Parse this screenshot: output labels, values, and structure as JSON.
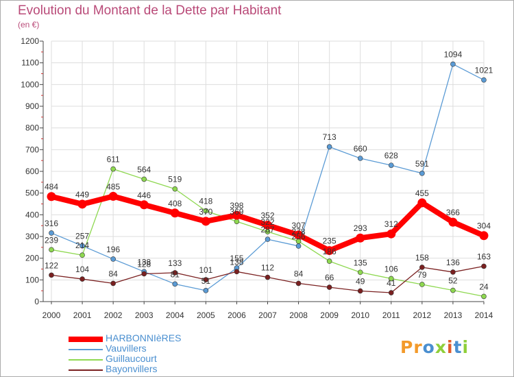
{
  "title": "Evolution du Montant de la Dette par Habitant",
  "subtitle": "(en €)",
  "logo": [
    "Pr",
    "o",
    "x",
    "i",
    "t",
    "i"
  ],
  "chart_data": {
    "type": "line",
    "x": [
      "2000",
      "2001",
      "2002",
      "2003",
      "2004",
      "2005",
      "2006",
      "2007",
      "2008",
      "2009",
      "2010",
      "2011",
      "2012",
      "2013",
      "2014"
    ],
    "ylim": [
      0,
      1200
    ],
    "yticks": [
      0,
      100,
      200,
      300,
      400,
      500,
      600,
      700,
      800,
      900,
      1000,
      1100,
      1200
    ],
    "grid": true,
    "legend_position": "bottom-left",
    "series": [
      {
        "name": "HARBONNIèRES",
        "color": "#ff0000",
        "values": [
          484,
          449,
          485,
          446,
          408,
          370,
          398,
          352,
          307,
          235,
          293,
          312,
          455,
          366,
          304
        ]
      },
      {
        "name": "Vauvillers",
        "color": "#5b9bd5",
        "values": [
          316,
          257,
          196,
          138,
          81,
          51,
          155,
          287,
          256,
          713,
          660,
          628,
          591,
          1094,
          1021
        ]
      },
      {
        "name": "Guillaucourt",
        "color": "#8ed850",
        "values": [
          239,
          214,
          611,
          564,
          519,
          418,
          369,
          322,
          278,
          186,
          135,
          106,
          79,
          52,
          24
        ]
      },
      {
        "name": "Bayonvillers",
        "color": "#7a2020",
        "values": [
          122,
          104,
          84,
          128,
          133,
          101,
          138,
          112,
          84,
          66,
          49,
          41,
          158,
          136,
          163
        ]
      }
    ],
    "data_labels": [
      {
        "series": 0,
        "labels": [
          "484",
          "449",
          "485",
          "446",
          "408",
          "370",
          "398",
          "352",
          "307",
          "235",
          "293",
          "312",
          "455",
          "366",
          "304"
        ]
      },
      {
        "series": 1,
        "labels": [
          "316",
          "257",
          "196",
          "138",
          "81",
          "51",
          "155",
          "287",
          "256",
          "713",
          "660",
          "628",
          "591",
          "1094",
          "1021"
        ]
      },
      {
        "series": 2,
        "labels": [
          "239",
          "214",
          "611",
          "564",
          "519",
          "418",
          "369",
          "322",
          "278",
          "186",
          "135",
          "106",
          "79",
          "52",
          "24"
        ]
      },
      {
        "series": 3,
        "labels": [
          "122",
          "104",
          "84",
          "128",
          "133",
          "101",
          "138",
          "112",
          "84",
          "66",
          "49",
          "41",
          "158",
          "136",
          "163"
        ]
      }
    ]
  }
}
